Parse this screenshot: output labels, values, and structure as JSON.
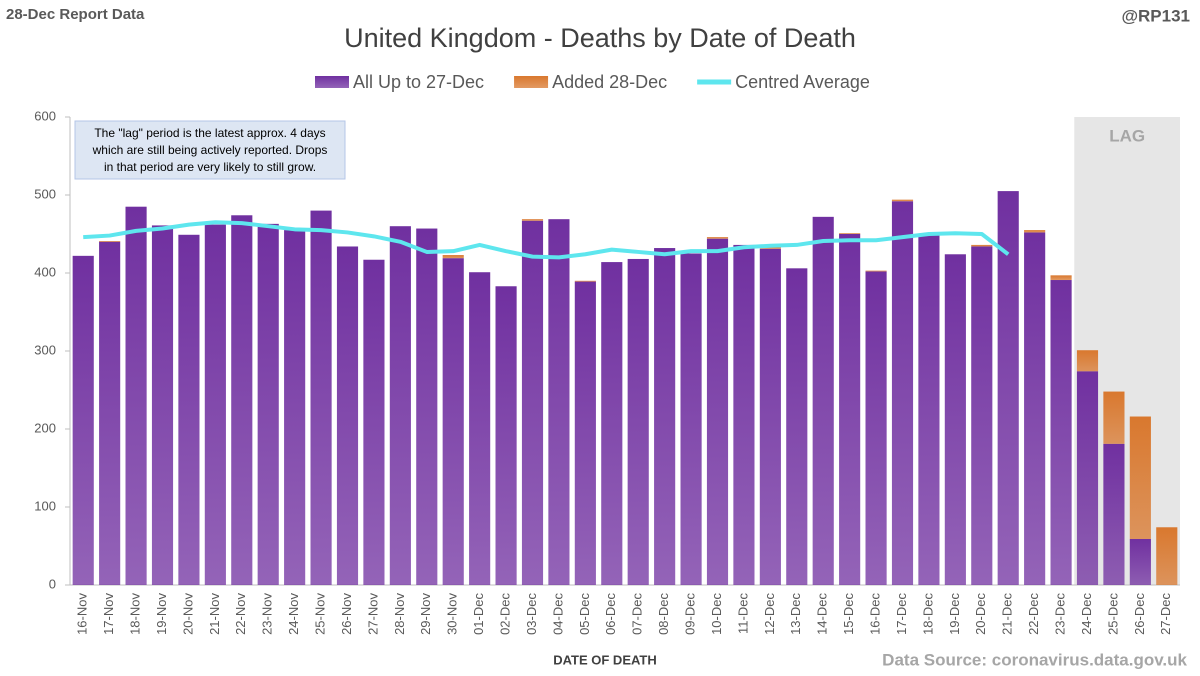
{
  "header": {
    "report": "28-Dec Report Data",
    "handle": "@RP131",
    "source": "Data Source: coronavirus.data.gov.uk"
  },
  "chart_data": {
    "type": "stacked_bar",
    "title": "United Kingdom - Deaths by Date of Death",
    "x_label": "DATE OF DEATH",
    "lag_label": "LAG",
    "annotation": [
      "The \"lag\" period is the latest approx. 4 days",
      "which are still being actively reported.  Drops",
      "in that period are very likely to still grow."
    ],
    "categories": [
      "16-Nov",
      "17-Nov",
      "18-Nov",
      "19-Nov",
      "20-Nov",
      "21-Nov",
      "22-Nov",
      "23-Nov",
      "24-Nov",
      "25-Nov",
      "26-Nov",
      "27-Nov",
      "28-Nov",
      "29-Nov",
      "30-Nov",
      "01-Dec",
      "02-Dec",
      "03-Dec",
      "04-Dec",
      "05-Dec",
      "06-Dec",
      "07-Dec",
      "08-Dec",
      "09-Dec",
      "10-Dec",
      "11-Dec",
      "12-Dec",
      "13-Dec",
      "14-Dec",
      "15-Dec",
      "16-Dec",
      "17-Dec",
      "18-Dec",
      "19-Dec",
      "20-Dec",
      "21-Dec",
      "22-Dec",
      "23-Dec",
      "24-Dec",
      "25-Dec",
      "26-Dec",
      "27-Dec"
    ],
    "series": [
      {
        "name": "All Up to 27-Dec",
        "color": "#7030a0",
        "values": [
          422,
          440,
          485,
          461,
          449,
          462,
          474,
          463,
          455,
          480,
          434,
          417,
          460,
          457,
          419,
          401,
          383,
          467,
          469,
          389,
          414,
          418,
          432,
          425,
          444,
          436,
          431,
          406,
          472,
          450,
          402,
          492,
          449,
          424,
          434,
          505,
          452,
          391,
          274,
          181,
          59,
          0
        ]
      },
      {
        "name": "Added 28-Dec",
        "color": "#d9782e",
        "values": [
          0,
          1,
          0,
          0,
          0,
          0,
          0,
          0,
          0,
          0,
          0,
          0,
          0,
          0,
          4,
          0,
          0,
          2,
          0,
          1,
          0,
          0,
          0,
          0,
          2,
          0,
          2,
          0,
          0,
          1,
          1,
          2,
          0,
          0,
          2,
          0,
          3,
          6,
          27,
          67,
          157,
          74
        ]
      },
      {
        "name": "Centred Average",
        "color": "#5ee6ee",
        "type": "line",
        "values": [
          446,
          448,
          454,
          457,
          462,
          465,
          464,
          460,
          456,
          455,
          452,
          447,
          440,
          427,
          428,
          436,
          428,
          421,
          420,
          424,
          430,
          427,
          424,
          428,
          428,
          433,
          435,
          436,
          441,
          442,
          442,
          446,
          450,
          451,
          450,
          424,
          null,
          null,
          null,
          null,
          null,
          null
        ]
      }
    ],
    "ylim": [
      0,
      600
    ],
    "yticks": [
      0,
      100,
      200,
      300,
      400,
      500,
      600
    ]
  }
}
